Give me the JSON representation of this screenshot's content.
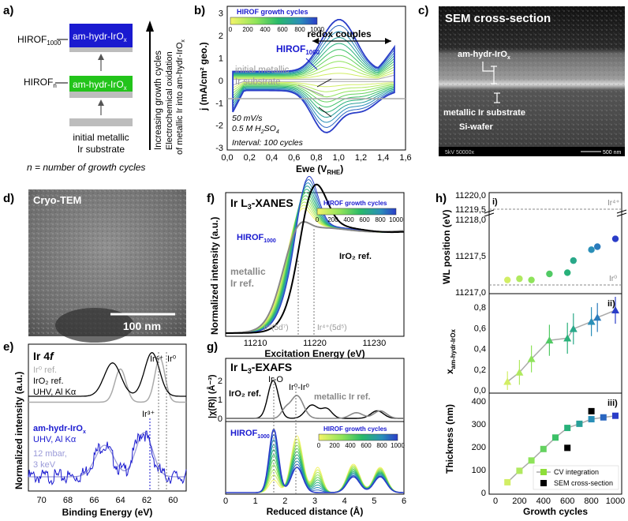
{
  "colors": {
    "accent_blue": "#1a1ad0",
    "hirof_green": "#22c41a",
    "gray": "#9a9a9a",
    "axis": "#000000"
  },
  "panel_labels": {
    "a": "a)",
    "b": "b)",
    "c": "c)",
    "d": "d)",
    "e": "e)",
    "f": "f)",
    "g": "g)",
    "h": "h)"
  },
  "panel_a": {
    "hirof1000_label": "HIROF",
    "hirof1000_sub": "1000",
    "hirofn_label": "HIROF",
    "hirofn_sub": "n",
    "box_top": "am-hydr-IrO",
    "box_top_sub": "x",
    "box_mid": "am-hydr-IrO",
    "box_mid_sub": "x",
    "substrate_line1": "initial metallic",
    "substrate_line2": "Ir substrate",
    "arrow_text1": "Increasing growth cycles",
    "arrow_text2": "Electrochemical oxidation",
    "arrow_text3": "of metallic Ir into am-hydr-IrO",
    "arrow_text3_sub": "x",
    "footnote": "n = number of growth cycles"
  },
  "panel_b": {
    "colorbar_title": "HIROF growth cycles",
    "colorbar_ticks": [
      "0",
      "200",
      "400",
      "600",
      "800",
      "1000"
    ],
    "redox": "redox couples",
    "hirof": "HIROF",
    "hirof_sub": "1000",
    "initial1": "initial metallic",
    "initial2": "Ir substrate",
    "cond1": "50 mV/s",
    "cond2": "0.5 M H",
    "cond2b": "SO",
    "cond3": "Interval: 100 cycles",
    "ylabel": "j (mA/cm² geo.)",
    "xlabel": "Ewe (V",
    "xlabel_sub": "RHE",
    "xticks": [
      "0,0",
      "0,2",
      "0,4",
      "0,6",
      "0,8",
      "1,0",
      "1,2",
      "1,4",
      "1,6"
    ],
    "yticks": [
      "3",
      "2",
      "1",
      "0",
      "-1",
      "-2",
      "-3"
    ]
  },
  "panel_c": {
    "title": "SEM cross-section",
    "label1": "am-hydr-IrO",
    "label1_sub": "x",
    "label2": "metallic Ir substrate",
    "label3": "Si-wafer",
    "info_left": "5kV  50000x",
    "scale": "500 nm"
  },
  "panel_d": {
    "title": "Cryo-TEM",
    "scale": "100 nm"
  },
  "panel_e": {
    "title": "Ir 4",
    "title_f": "f",
    "ir0ref": "Ir⁰ ref.",
    "iro2ref": "IrO₂ ref.",
    "uhv1": "UHV, Al Kα",
    "ir4": "Ir⁴⁺",
    "ir0": "Ir⁰",
    "ir3": "Ir³⁺",
    "am": "am-hydr-IrO",
    "am_sub": "x",
    "uhv2": "UHV, Al Kα",
    "mbar": "12 mbar,",
    "kev": "3 keV",
    "ylabel": "Normalized intensity (a.u.)",
    "xlabel": "Binding Energy (eV)",
    "xticks": [
      "70",
      "68",
      "66",
      "64",
      "62",
      "60"
    ]
  },
  "panel_f": {
    "title": "Ir L",
    "title_sub": "3",
    "title_rest": "-XANES",
    "colorbar_title": "HIROF growth cycles",
    "colorbar_ticks": [
      "0",
      "200",
      "400",
      "600",
      "800",
      "1000"
    ],
    "hirof": "HIROF",
    "hirof_sub": "1000",
    "iro2": "IrO₂ ref.",
    "met1": "metallic",
    "met2": "Ir ref.",
    "ir0lab": "Ir⁰(5d⁷)",
    "ir4lab": "Ir⁴⁺(5d⁵)",
    "ylabel": "Normalized intensity (a.u.)",
    "xlabel": "Excitation Energy (eV)",
    "xticks": [
      "11210",
      "11220",
      "11230"
    ]
  },
  "panel_g": {
    "title": "Ir L",
    "title_sub": "3",
    "title_rest": "-EXAFS",
    "iro": "Ir-O",
    "irir": "Ir⁰-Ir⁰",
    "iro2": "IrO₂ ref.",
    "met": "metallic Ir ref.",
    "hirof": "HIROF",
    "hirof_sub": "1000",
    "colorbar_title": "HIROF growth cycles",
    "colorbar_ticks": [
      "0",
      "200",
      "400",
      "600",
      "800",
      "1000"
    ],
    "ylabel_top": "|χ(R)| (Å⁻³)",
    "yticks_top": [
      "0",
      "1",
      "2"
    ],
    "xlabel": "Reduced distance (Å)",
    "xticks": [
      "0",
      "1",
      "2",
      "3",
      "4",
      "5",
      "6"
    ]
  },
  "panel_h": {
    "sub_i": "i)",
    "sub_ii": "ii)",
    "sub_iii": "iii)",
    "ir4": "Ir⁴⁺",
    "ir0": "Ir⁰",
    "ylabel1": "WL position (eV)",
    "yticks1": [
      "11220,0",
      "11219,5",
      "11218,0",
      "11217,5",
      "11217,0"
    ],
    "ylabel2": "x",
    "ylabel2_sub": "am-hydr-IrOx",
    "yticks2": [
      "0,8",
      "0,6",
      "0,4",
      "0,2",
      "0,0"
    ],
    "ylabel3": "Thickness (nm)",
    "yticks3": [
      "400",
      "300",
      "200",
      "100",
      "0"
    ],
    "legend_cv": "CV integration",
    "legend_sem": "SEM cross-section",
    "xlabel": "Growth cycles",
    "xticks": [
      "0",
      "200",
      "400",
      "600",
      "800",
      "1000"
    ]
  },
  "chart_data": [
    {
      "type": "scatter",
      "panel": "h-i",
      "title": "WL position",
      "x": [
        100,
        200,
        300,
        450,
        600,
        650,
        800,
        850,
        1000
      ],
      "y": [
        11217.2,
        11217.22,
        11217.2,
        11217.3,
        11217.32,
        11217.52,
        11217.7,
        11217.75,
        11217.88
      ],
      "ylim": [
        11217.0,
        11220.0
      ]
    },
    {
      "type": "scatter",
      "panel": "h-ii",
      "x": [
        100,
        200,
        300,
        450,
        600,
        650,
        800,
        850,
        1000
      ],
      "y": [
        0.08,
        0.17,
        0.3,
        0.48,
        0.5,
        0.59,
        0.66,
        0.7,
        0.77
      ],
      "err": [
        0.1,
        0.12,
        0.13,
        0.15,
        0.15,
        0.15,
        0.14,
        0.14,
        0.13
      ],
      "ylim": [
        0,
        0.9
      ]
    },
    {
      "type": "line",
      "panel": "h-iii",
      "series": [
        {
          "name": "CV integration",
          "x": [
            100,
            200,
            300,
            400,
            500,
            600,
            700,
            800,
            900,
            1000
          ],
          "values": [
            45,
            95,
            140,
            190,
            240,
            282,
            300,
            320,
            328,
            335
          ]
        },
        {
          "name": "SEM cross-section",
          "x": [
            600,
            800
          ],
          "values": [
            195,
            355
          ]
        }
      ],
      "ylim": [
        0,
        420
      ]
    }
  ]
}
